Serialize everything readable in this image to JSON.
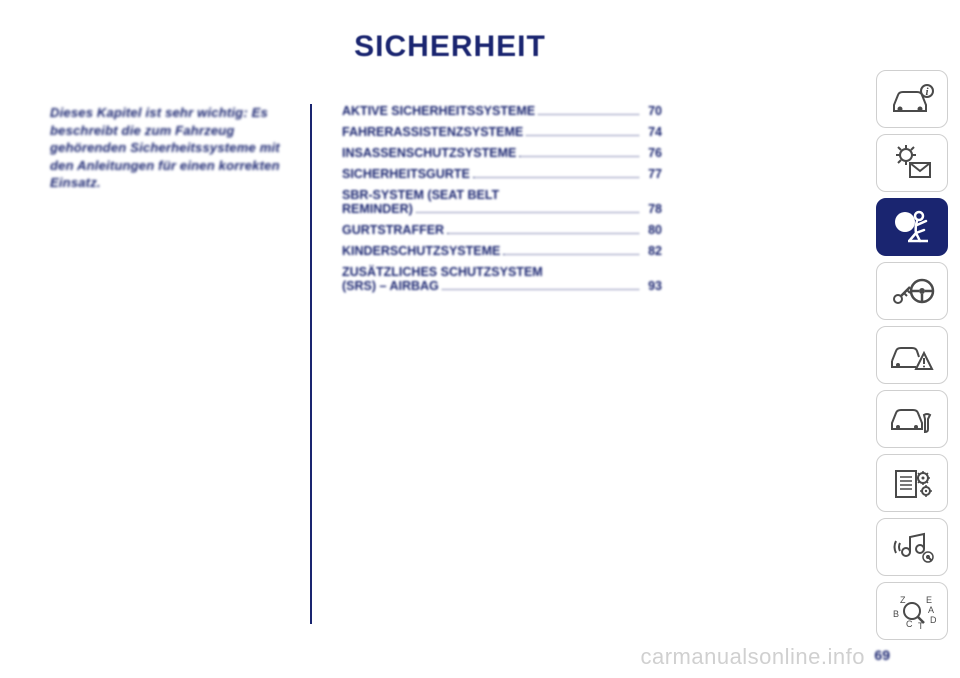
{
  "title": "SICHERHEIT",
  "intro": "Dieses Kapitel ist sehr wichtig: Es beschreibt die zum Fahrzeug gehörenden Sicherheitssysteme mit den Anleitungen für einen korrekten Einsatz.",
  "toc": [
    {
      "label": "AKTIVE SICHERHEITSSYSTEME",
      "page": "70",
      "twoline": false
    },
    {
      "label": "FAHRERASSISTENZSYSTEME",
      "page": "74",
      "twoline": false
    },
    {
      "label": "INSASSENSCHUTZSYSTEME",
      "page": "76",
      "twoline": false
    },
    {
      "label": "SICHERHEITSGURTE",
      "page": "77",
      "twoline": false
    },
    {
      "label1": "SBR-SYSTEM (SEAT BELT",
      "label2": "REMINDER)",
      "page": "78",
      "twoline": true
    },
    {
      "label": "GURTSTRAFFER",
      "page": "80",
      "twoline": false
    },
    {
      "label": "KINDERSCHUTZSYSTEME",
      "page": "82",
      "twoline": false
    },
    {
      "label1": "ZUSÄTZLICHES SCHUTZSYSTEM",
      "label2": "(SRS) – AIRBAG",
      "page": "93",
      "twoline": true
    }
  ],
  "page_number": "69",
  "watermark": "carmanualsonline.info",
  "colors": {
    "primary": "#1a2570",
    "icon_stroke": "#4a4a4a",
    "active_bg": "#1a2570",
    "tab_border": "#cfcfcf",
    "watermark": "#d0d0d0",
    "white": "#ffffff"
  },
  "sidebar_tabs": [
    {
      "name": "vehicle-info-icon",
      "active": false
    },
    {
      "name": "dashboard-message-icon",
      "active": false
    },
    {
      "name": "airbag-icon",
      "active": true
    },
    {
      "name": "key-steering-icon",
      "active": false
    },
    {
      "name": "car-warning-icon",
      "active": false
    },
    {
      "name": "car-maintenance-icon",
      "active": false
    },
    {
      "name": "document-settings-icon",
      "active": false
    },
    {
      "name": "multimedia-icon",
      "active": false
    },
    {
      "name": "index-icon",
      "active": false
    }
  ]
}
